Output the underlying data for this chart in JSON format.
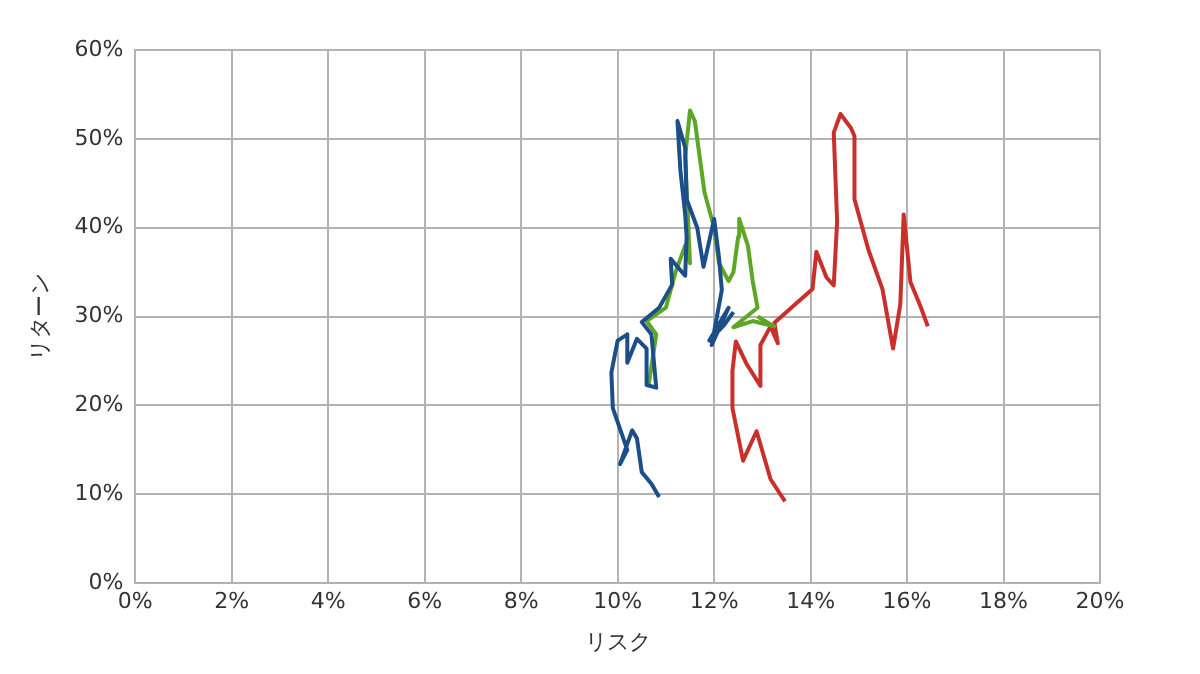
{
  "chart_data": {
    "type": "line",
    "xlabel": "リスク",
    "ylabel": "リターン",
    "xlim": [
      0,
      20
    ],
    "ylim": [
      0,
      60
    ],
    "xticks": [
      {
        "value": 0,
        "label": "0%"
      },
      {
        "value": 2,
        "label": "2%"
      },
      {
        "value": 4,
        "label": "4%"
      },
      {
        "value": 6,
        "label": "6%"
      },
      {
        "value": 8,
        "label": "8%"
      },
      {
        "value": 10,
        "label": "10%"
      },
      {
        "value": 12,
        "label": "12%"
      },
      {
        "value": 14,
        "label": "14%"
      },
      {
        "value": 16,
        "label": "16%"
      },
      {
        "value": 18,
        "label": "18%"
      },
      {
        "value": 20,
        "label": "20%"
      }
    ],
    "yticks": [
      {
        "value": 0,
        "label": "0%"
      },
      {
        "value": 10,
        "label": "10%"
      },
      {
        "value": 20,
        "label": "20%"
      },
      {
        "value": 30,
        "label": "30%"
      },
      {
        "value": 40,
        "label": "40%"
      },
      {
        "value": 50,
        "label": "50%"
      },
      {
        "value": 60,
        "label": "60%"
      }
    ],
    "grid": true,
    "legend": false,
    "marker": "none",
    "line_style": "solid",
    "series": [
      {
        "color": "#1c4f8a",
        "x": [
          10.86,
          10.7,
          10.5,
          10.4,
          10.3,
          10.05,
          10.2,
          9.9,
          9.87,
          10.0,
          10.2,
          10.2,
          10.4,
          10.6,
          10.6,
          10.8,
          10.7,
          10.5,
          10.86,
          11.13,
          11.1,
          11.4,
          11.43,
          11.4,
          11.3,
          11.24,
          11.4,
          11.43,
          11.65,
          11.78,
          12.0,
          12.1,
          12.16,
          11.95,
          12.3,
          11.9,
          12.2,
          12.4
        ],
        "values": [
          9.7,
          11.2,
          12.5,
          16.3,
          17.2,
          13.4,
          15,
          19.7,
          23.7,
          27.3,
          28,
          24.8,
          27.5,
          26.4,
          22.3,
          22,
          28,
          29.4,
          31,
          33.6,
          36.5,
          34.6,
          39,
          41.5,
          46.5,
          52,
          49,
          43.2,
          40,
          35.6,
          41,
          36.7,
          33,
          26.8,
          31,
          27.3,
          29,
          30.5
        ]
      },
      {
        "color": "#5ea626",
        "x": [
          10.64,
          10.8,
          10.6,
          11.0,
          11.2,
          11.4,
          11.5,
          11.45,
          11.4,
          11.5,
          11.6,
          11.7,
          11.8,
          12.0,
          12.1,
          12.3,
          12.4,
          12.5,
          12.52,
          12.7,
          12.8,
          12.9,
          12.4,
          12.8,
          13.25,
          12.9
        ],
        "values": [
          22.2,
          28,
          29.5,
          31,
          35,
          38,
          36,
          42,
          48,
          53.2,
          52,
          48,
          44,
          40,
          36,
          34,
          35,
          39,
          41,
          38,
          34,
          31,
          28.8,
          29.5,
          28.9,
          30
        ]
      },
      {
        "color": "#c9302c",
        "x": [
          13.47,
          13.17,
          12.88,
          12.6,
          12.38,
          12.38,
          12.45,
          12.67,
          12.96,
          12.96,
          13.17,
          13.32,
          13.25,
          14.04,
          14.12,
          14.33,
          14.48,
          14.55,
          14.48,
          14.62,
          14.84,
          14.91,
          14.91,
          15.2,
          15.49,
          15.71,
          15.86,
          15.93,
          16.07,
          16.29,
          16.43
        ],
        "values": [
          9.2,
          11.7,
          17.1,
          13.8,
          19.7,
          23.9,
          27.2,
          24.7,
          22.2,
          26.8,
          28.9,
          27,
          29.3,
          33.1,
          37.3,
          34.4,
          33.5,
          40.7,
          50.7,
          52.8,
          51.2,
          50.3,
          43.2,
          37.5,
          33.1,
          26.4,
          31.4,
          41.5,
          33.9,
          31,
          28.9
        ]
      }
    ]
  }
}
